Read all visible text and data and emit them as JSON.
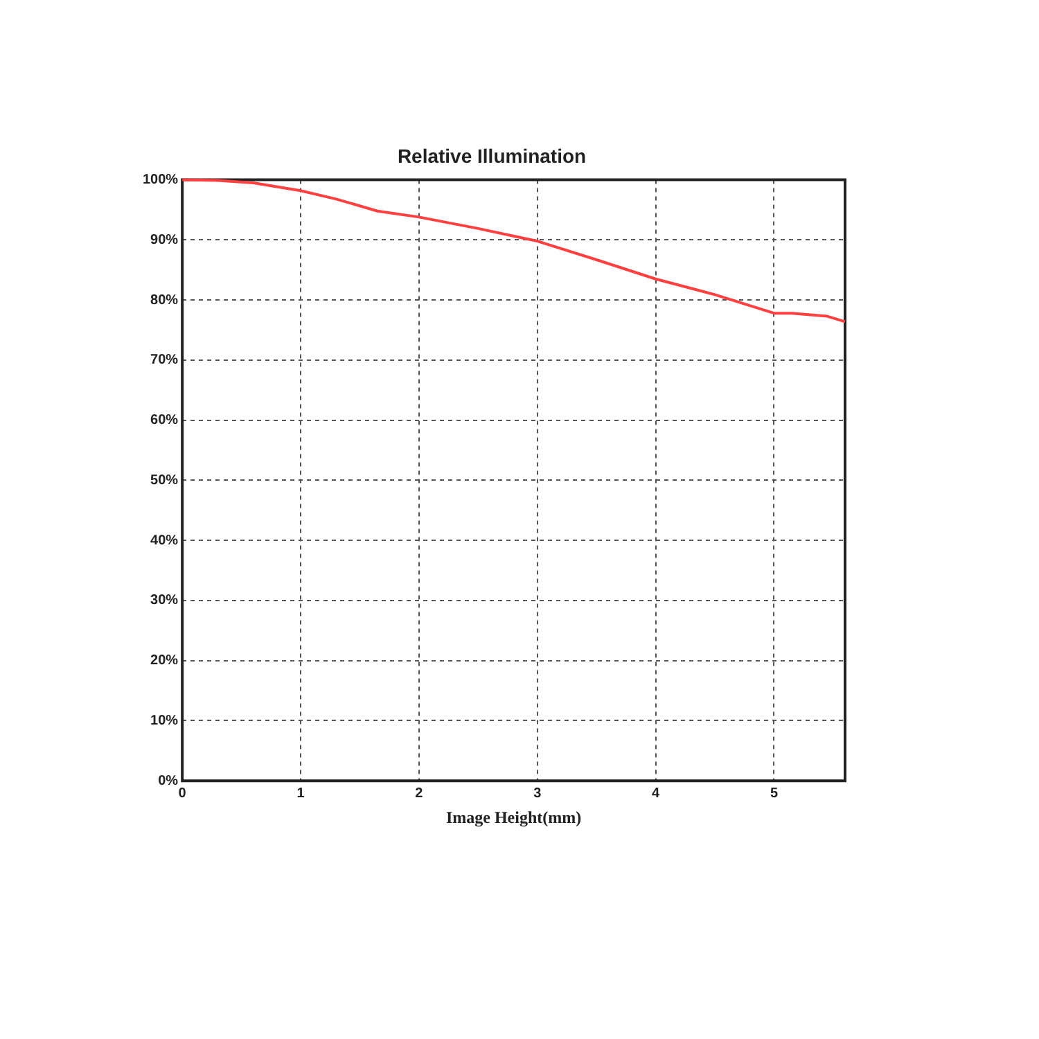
{
  "chart_data": {
    "type": "line",
    "title": "Relative Illumination",
    "xlabel": "Image Height(mm)",
    "x": [
      0,
      0.3,
      0.6,
      1.0,
      1.3,
      1.65,
      2.0,
      2.5,
      3.0,
      3.5,
      4.0,
      4.5,
      5.0,
      5.15,
      5.45,
      5.6
    ],
    "series": [
      {
        "color": "#ff4040",
        "values": [
          100,
          99.9,
          99.5,
          98.2,
          96.8,
          94.8,
          93.8,
          91.9,
          89.8,
          86.7,
          83.5,
          80.9,
          77.8,
          77.8,
          77.3,
          76.4
        ]
      }
    ],
    "xlim": [
      0,
      5.6
    ],
    "xticks": [
      0,
      1,
      2,
      3,
      4,
      5
    ],
    "ylim": [
      0,
      100
    ],
    "yticks": [
      {
        "value": 0,
        "label": "0%"
      },
      {
        "value": 10,
        "label": "10%"
      },
      {
        "value": 20,
        "label": "20%"
      },
      {
        "value": 30,
        "label": "30%"
      },
      {
        "value": 40,
        "label": "40%"
      },
      {
        "value": 50,
        "label": "50%"
      },
      {
        "value": 60,
        "label": "60%"
      },
      {
        "value": 70,
        "label": "70%"
      },
      {
        "value": 80,
        "label": "80%"
      },
      {
        "value": 90,
        "label": "90%"
      },
      {
        "value": 100,
        "label": "100%"
      }
    ],
    "grid": true,
    "legend": false,
    "marker": "none",
    "line_style": "solid"
  }
}
